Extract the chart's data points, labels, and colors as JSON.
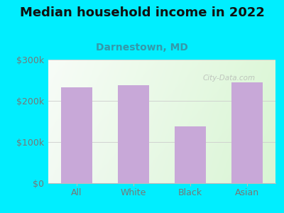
{
  "title": "Median household income in 2022",
  "subtitle": "Darnestown, MD",
  "categories": [
    "All",
    "White",
    "Black",
    "Asian"
  ],
  "values": [
    232000,
    238000,
    138000,
    245000
  ],
  "bar_color": "#c8a8d8",
  "title_fontsize": 13,
  "subtitle_fontsize": 10,
  "subtitle_color": "#3399aa",
  "title_color": "#111111",
  "background_color": "#00eeff",
  "ylim": [
    0,
    300000
  ],
  "yticks": [
    0,
    100000,
    200000,
    300000
  ],
  "ytick_labels": [
    "$0",
    "$100k",
    "$200k",
    "$300k"
  ],
  "watermark": "City-Data.com",
  "tick_color": "#777777",
  "grid_color": "#cccccc"
}
